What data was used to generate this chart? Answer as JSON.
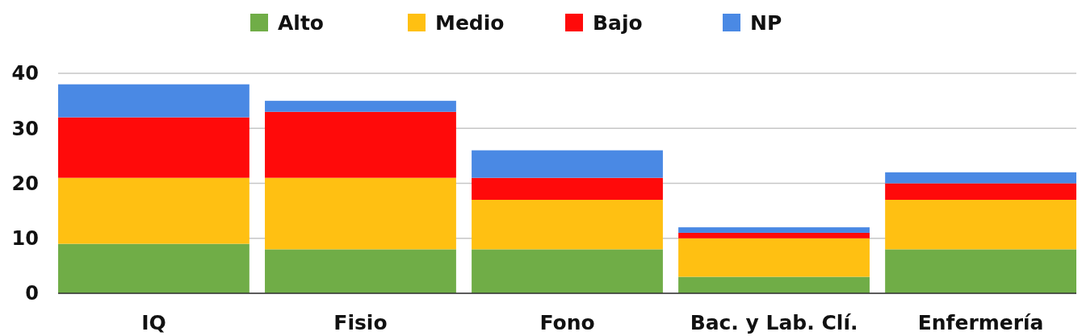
{
  "chart_data": {
    "type": "bar",
    "stacked": true,
    "categories": [
      "IQ",
      "Fisio",
      "Fono",
      "Bac. y Lab. Clí.",
      "Enfermería"
    ],
    "series": [
      {
        "name": "Alto",
        "color": "#70ad47",
        "values": [
          9,
          8,
          8,
          3,
          8
        ]
      },
      {
        "name": "Medio",
        "color": "#ffc012",
        "values": [
          12,
          13,
          9,
          7,
          9
        ]
      },
      {
        "name": "Bajo",
        "color": "#ff0a0a",
        "values": [
          11,
          12,
          4,
          1,
          3
        ]
      },
      {
        "name": "NP",
        "color": "#4a89e4",
        "values": [
          6,
          2,
          5,
          1,
          2
        ]
      }
    ],
    "ylim": [
      0,
      40
    ],
    "yticks": [
      0,
      10,
      20,
      30,
      40
    ],
    "grid": "y",
    "legend": "top"
  }
}
